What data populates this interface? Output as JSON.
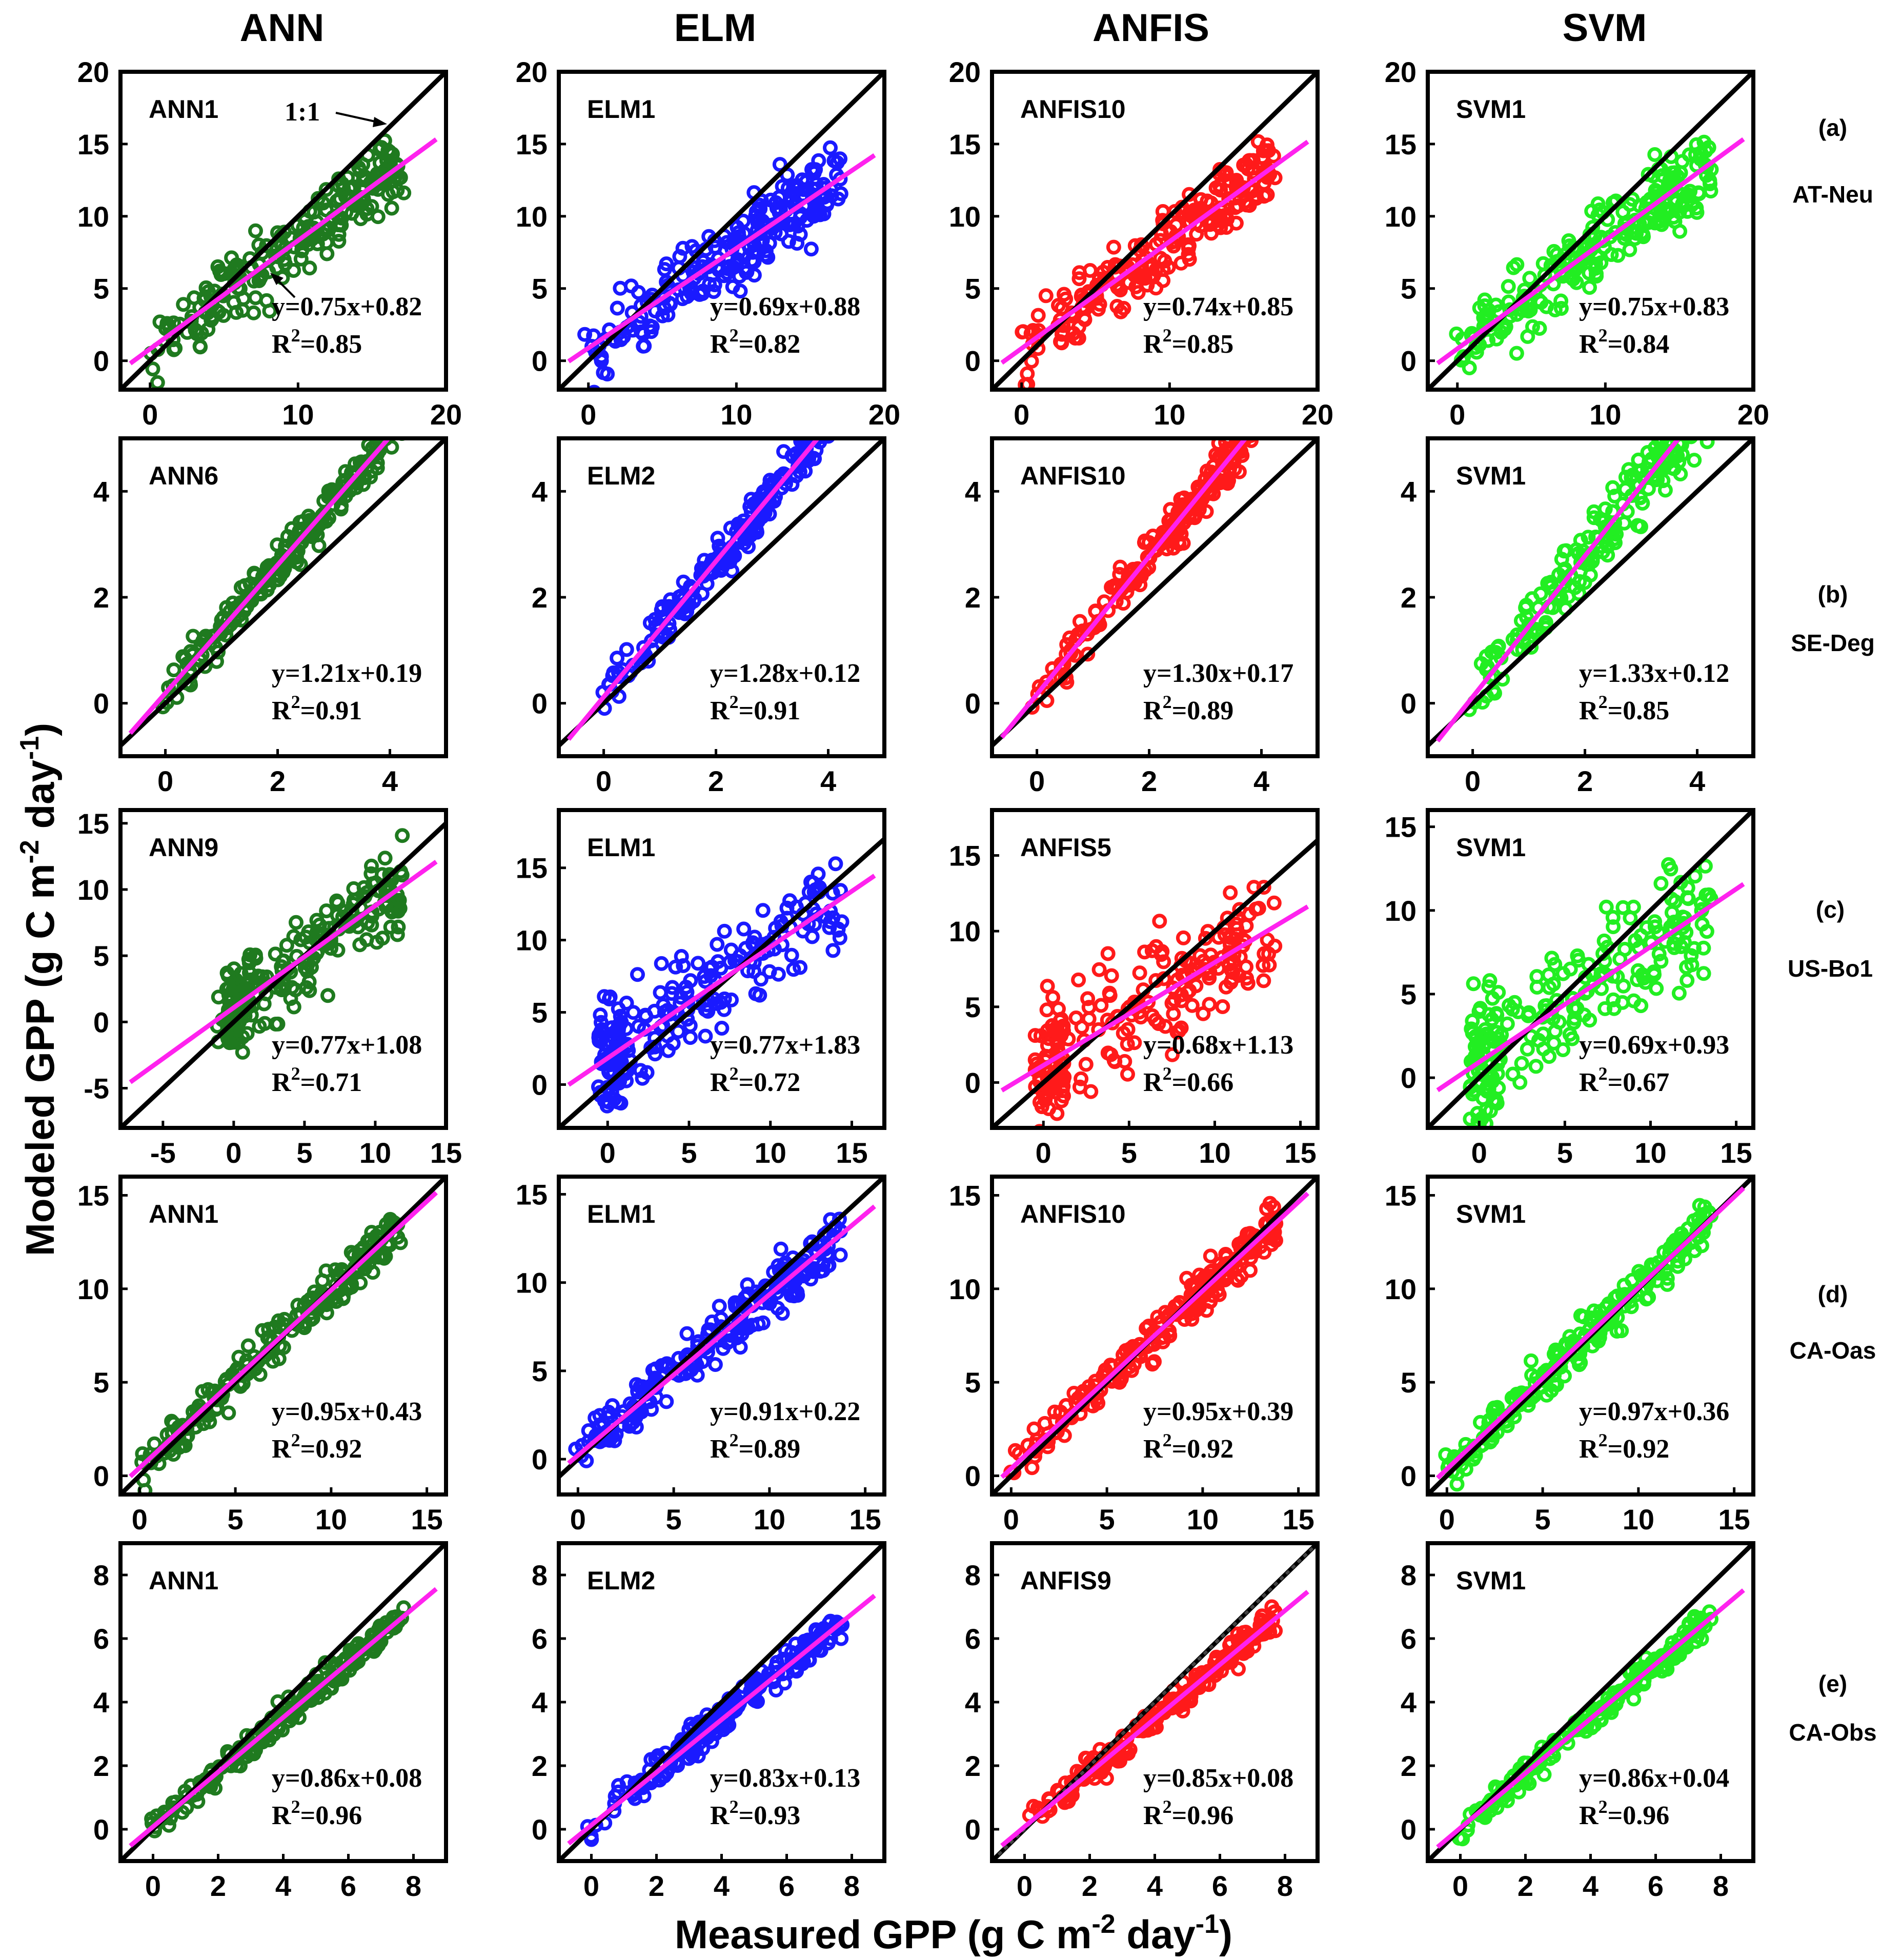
{
  "figure": {
    "column_titles": [
      "ANN",
      "ELM",
      "ANFIS",
      "SVM"
    ],
    "x_axis_title": "Measured GPP (g C m",
    "y_axis_title": "Modeled GPP (g C m",
    "unit_exp1": "-2",
    "unit_mid": " day",
    "unit_exp2": "-1",
    "unit_end": ")",
    "arrow_label": "1:1",
    "row_labels": [
      {
        "tag": "(a)",
        "site": "AT-Neu"
      },
      {
        "tag": "(b)",
        "site": "SE-Deg"
      },
      {
        "tag": "(c)",
        "site": "US-Bo1"
      },
      {
        "tag": "(d)",
        "site": "CA-Oas"
      },
      {
        "tag": "(e)",
        "site": "CA-Obs"
      }
    ],
    "colors": {
      "ANN": "#1f7a1f",
      "ELM": "#1a1aff",
      "ANFIS": "#ff1a1a",
      "SVM": "#22ee22",
      "fit": "#ff22ee",
      "one_to_one": "#000000"
    }
  },
  "chart_data": [
    {
      "type": "scatter",
      "row": 0,
      "col": 0,
      "model": "ANN1",
      "equation": "y=0.75x+0.82",
      "r2": "0.85",
      "slope": 0.75,
      "intercept": 0.82,
      "r2_value": 0.85,
      "xlim": [
        -2,
        20
      ],
      "ylim": [
        -2,
        20
      ],
      "xticks": [
        0,
        10,
        20
      ],
      "yticks": [
        0,
        5,
        10,
        15,
        20
      ]
    },
    {
      "type": "scatter",
      "row": 0,
      "col": 1,
      "model": "ELM1",
      "equation": "y=0.69x+0.88",
      "r2": "0.82",
      "slope": 0.69,
      "intercept": 0.88,
      "r2_value": 0.82,
      "xlim": [
        -2,
        20
      ],
      "ylim": [
        -2,
        20
      ],
      "xticks": [
        0,
        10,
        20
      ],
      "yticks": [
        0,
        5,
        10,
        15,
        20
      ]
    },
    {
      "type": "scatter",
      "row": 0,
      "col": 2,
      "model": "ANFIS10",
      "equation": "y=0.74x+0.85",
      "r2": "0.85",
      "slope": 0.74,
      "intercept": 0.85,
      "r2_value": 0.85,
      "xlim": [
        -2,
        20
      ],
      "ylim": [
        -2,
        20
      ],
      "xticks": [
        0,
        10,
        20
      ],
      "yticks": [
        0,
        5,
        10,
        15,
        20
      ]
    },
    {
      "type": "scatter",
      "row": 0,
      "col": 3,
      "model": "SVM1",
      "equation": "y=0.75x+0.83",
      "r2": "0.84",
      "slope": 0.75,
      "intercept": 0.83,
      "r2_value": 0.84,
      "xlim": [
        -2,
        20
      ],
      "ylim": [
        -2,
        20
      ],
      "xticks": [
        0,
        10,
        20
      ],
      "yticks": [
        0,
        5,
        10,
        15,
        20
      ]
    },
    {
      "type": "scatter",
      "row": 1,
      "col": 0,
      "model": "ANN6",
      "equation": "y=1.21x+0.19",
      "r2": "0.91",
      "slope": 1.21,
      "intercept": 0.19,
      "r2_value": 0.91,
      "xlim": [
        -0.8,
        5
      ],
      "ylim": [
        -1,
        5
      ],
      "xticks": [
        0,
        2,
        4
      ],
      "yticks": [
        0,
        2,
        4
      ]
    },
    {
      "type": "scatter",
      "row": 1,
      "col": 1,
      "model": "ELM2",
      "equation": "y=1.28x+0.12",
      "r2": "0.91",
      "slope": 1.28,
      "intercept": 0.12,
      "r2_value": 0.91,
      "xlim": [
        -0.8,
        5
      ],
      "ylim": [
        -1,
        5
      ],
      "xticks": [
        0,
        2,
        4
      ],
      "yticks": [
        0,
        2,
        4
      ]
    },
    {
      "type": "scatter",
      "row": 1,
      "col": 2,
      "model": "ANFIS10",
      "equation": "y=1.30x+0.17",
      "r2": "0.89",
      "slope": 1.3,
      "intercept": 0.17,
      "r2_value": 0.89,
      "xlim": [
        -0.8,
        5
      ],
      "ylim": [
        -1,
        5
      ],
      "xticks": [
        0,
        2,
        4
      ],
      "yticks": [
        0,
        2,
        4
      ]
    },
    {
      "type": "scatter",
      "row": 1,
      "col": 3,
      "model": "SVM1",
      "equation": "y=1.33x+0.12",
      "r2": "0.85",
      "slope": 1.33,
      "intercept": 0.12,
      "r2_value": 0.85,
      "xlim": [
        -0.8,
        5
      ],
      "ylim": [
        -1,
        5
      ],
      "xticks": [
        0,
        2,
        4
      ],
      "yticks": [
        0,
        2,
        4
      ]
    },
    {
      "type": "scatter",
      "row": 2,
      "col": 0,
      "model": "ANN9",
      "equation": "y=0.77x+1.08",
      "r2": "0.71",
      "slope": 0.77,
      "intercept": 1.08,
      "r2_value": 0.71,
      "xlim": [
        -8,
        15
      ],
      "ylim": [
        -8,
        16
      ],
      "xticks": [
        -5,
        0,
        5,
        10,
        15
      ],
      "yticks": [
        -5,
        0,
        5,
        10,
        15
      ]
    },
    {
      "type": "scatter",
      "row": 2,
      "col": 1,
      "model": "ELM1",
      "equation": "y=0.77x+1.83",
      "r2": "0.72",
      "slope": 0.77,
      "intercept": 1.83,
      "r2_value": 0.72,
      "xlim": [
        -3,
        17
      ],
      "ylim": [
        -3,
        19
      ],
      "xticks": [
        0,
        5,
        10,
        15
      ],
      "yticks": [
        0,
        5,
        10,
        15
      ]
    },
    {
      "type": "scatter",
      "row": 2,
      "col": 2,
      "model": "ANFIS5",
      "equation": "y=0.68x+1.13",
      "r2": "0.66",
      "slope": 0.68,
      "intercept": 1.13,
      "r2_value": 0.66,
      "xlim": [
        -3,
        16
      ],
      "ylim": [
        -3,
        18
      ],
      "xticks": [
        0,
        5,
        10,
        15
      ],
      "yticks": [
        0,
        5,
        10,
        15
      ]
    },
    {
      "type": "scatter",
      "row": 2,
      "col": 3,
      "model": "SVM1",
      "equation": "y=0.69x+0.93",
      "r2": "0.67",
      "slope": 0.69,
      "intercept": 0.93,
      "r2_value": 0.67,
      "xlim": [
        -3,
        16
      ],
      "ylim": [
        -3,
        16
      ],
      "xticks": [
        0,
        5,
        10,
        15
      ],
      "yticks": [
        0,
        5,
        10,
        15
      ]
    },
    {
      "type": "scatter",
      "row": 3,
      "col": 0,
      "model": "ANN1",
      "equation": "y=0.95x+0.43",
      "r2": "0.92",
      "slope": 0.95,
      "intercept": 0.43,
      "r2_value": 0.92,
      "xlim": [
        -1,
        16
      ],
      "ylim": [
        -1,
        16
      ],
      "xticks": [
        0,
        5,
        10,
        15
      ],
      "yticks": [
        0,
        5,
        10,
        15
      ]
    },
    {
      "type": "scatter",
      "row": 3,
      "col": 1,
      "model": "ELM1",
      "equation": "y=0.91x+0.22",
      "r2": "0.89",
      "slope": 0.91,
      "intercept": 0.22,
      "r2_value": 0.89,
      "xlim": [
        -1,
        16
      ],
      "ylim": [
        -2,
        16
      ],
      "xticks": [
        0,
        5,
        10,
        15
      ],
      "yticks": [
        0,
        5,
        10,
        15
      ]
    },
    {
      "type": "scatter",
      "row": 3,
      "col": 2,
      "model": "ANFIS10",
      "equation": "y=0.95x+0.39",
      "r2": "0.92",
      "slope": 0.95,
      "intercept": 0.39,
      "r2_value": 0.92,
      "xlim": [
        -1,
        16
      ],
      "ylim": [
        -1,
        16
      ],
      "xticks": [
        0,
        5,
        10,
        15
      ],
      "yticks": [
        0,
        5,
        10,
        15
      ]
    },
    {
      "type": "scatter",
      "row": 3,
      "col": 3,
      "model": "SVM1",
      "equation": "y=0.97x+0.36",
      "r2": "0.92",
      "slope": 0.97,
      "intercept": 0.36,
      "r2_value": 0.92,
      "xlim": [
        -1,
        16
      ],
      "ylim": [
        -1,
        16
      ],
      "xticks": [
        0,
        5,
        10,
        15
      ],
      "yticks": [
        0,
        5,
        10,
        15
      ]
    },
    {
      "type": "scatter",
      "row": 4,
      "col": 0,
      "model": "ANN1",
      "equation": "y=0.86x+0.08",
      "r2": "0.96",
      "slope": 0.86,
      "intercept": 0.08,
      "r2_value": 0.96,
      "xlim": [
        -1,
        9
      ],
      "ylim": [
        -1,
        9
      ],
      "xticks": [
        0,
        2,
        4,
        6,
        8
      ],
      "yticks": [
        0,
        2,
        4,
        6,
        8
      ]
    },
    {
      "type": "scatter",
      "row": 4,
      "col": 1,
      "model": "ELM2",
      "equation": "y=0.83x+0.13",
      "r2": "0.93",
      "slope": 0.83,
      "intercept": 0.13,
      "r2_value": 0.93,
      "xlim": [
        -1,
        9
      ],
      "ylim": [
        -1,
        9
      ],
      "xticks": [
        0,
        2,
        4,
        6,
        8
      ],
      "yticks": [
        0,
        2,
        4,
        6,
        8
      ]
    },
    {
      "type": "scatter",
      "row": 4,
      "col": 2,
      "model": "ANFIS9",
      "equation": "y=0.85x+0.08",
      "r2": "0.96",
      "slope": 0.85,
      "intercept": 0.08,
      "r2_value": 0.96,
      "xlim": [
        -1,
        9
      ],
      "ylim": [
        -1,
        9
      ],
      "xticks": [
        0,
        2,
        4,
        6,
        8
      ],
      "yticks": [
        0,
        2,
        4,
        6,
        8
      ],
      "dotted_one_to_one": true
    },
    {
      "type": "scatter",
      "row": 4,
      "col": 3,
      "model": "SVM1",
      "equation": "y=0.86x+0.04",
      "r2": "0.96",
      "slope": 0.86,
      "intercept": 0.04,
      "r2_value": 0.96,
      "xlim": [
        -1,
        9
      ],
      "ylim": [
        -1,
        9
      ],
      "xticks": [
        0,
        2,
        4,
        6,
        8
      ],
      "yticks": [
        0,
        2,
        4,
        6,
        8
      ]
    }
  ]
}
